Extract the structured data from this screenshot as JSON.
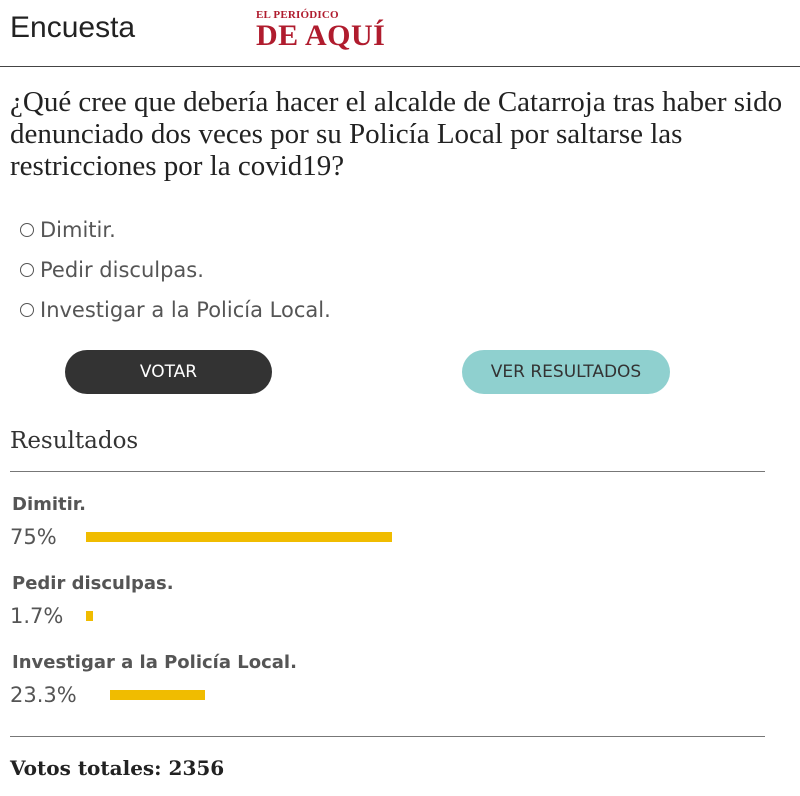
{
  "header": {
    "title": "Encuesta",
    "logo_top": "EL PERIÓDICO",
    "logo_main": "DE AQUÍ"
  },
  "poll": {
    "question": "¿Qué cree que debería hacer el alcalde de Catarroja tras haber sido denunciado dos veces por su Policía Local por saltarse las restricciones por la covid19?",
    "options": [
      {
        "label": "Dimitir."
      },
      {
        "label": "Pedir disculpas."
      },
      {
        "label": "Investigar a la Policía Local."
      }
    ],
    "vote_label": "VOTAR",
    "results_button_label": "VER RESULTADOS"
  },
  "results": {
    "title": "Resultados",
    "items": [
      {
        "label": "Dimitir.",
        "percent_text": "75%",
        "percent": 75
      },
      {
        "label": "Pedir disculpas.",
        "percent_text": "1.7%",
        "percent": 1.7
      },
      {
        "label": "Investigar a la Policía Local.",
        "percent_text": "23.3%",
        "percent": 23.3
      }
    ],
    "total_label": "Votos totales:",
    "total_value": "2356"
  },
  "colors": {
    "bar": "#f0bc00",
    "vote_button": "#333333",
    "results_button": "#8fd0cf",
    "logo": "#b01c2e"
  }
}
